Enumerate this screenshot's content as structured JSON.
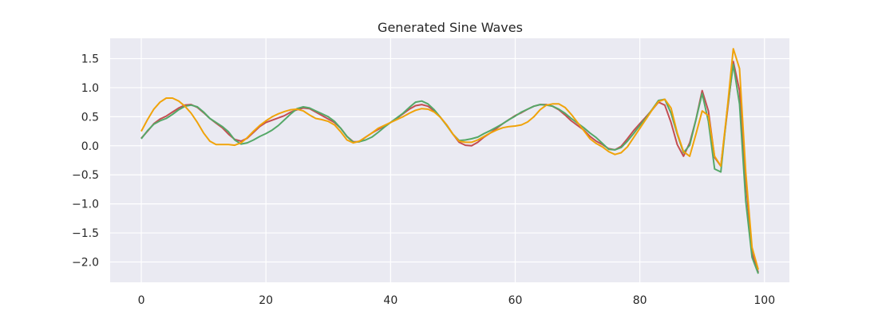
{
  "chart_data": {
    "type": "line",
    "title": "Generated Sine Waves",
    "xlabel": "",
    "ylabel": "",
    "xlim": [
      -5,
      104
    ],
    "ylim": [
      -2.35,
      1.85
    ],
    "grid": true,
    "background": "#eaeaf2",
    "grid_color": "#ffffff",
    "xticks": [
      0,
      20,
      40,
      60,
      80,
      100
    ],
    "yticks": [
      1.5,
      1.0,
      0.5,
      0.0,
      -0.5,
      -1.0,
      -1.5,
      -2.0
    ],
    "ytick_labels": [
      "1.5",
      "1.0",
      "0.5",
      "0.0",
      "−0.5",
      "−1.0",
      "−1.5",
      "−2.0"
    ],
    "series": [
      {
        "color": "#c44e52",
        "values": [
          0.13,
          0.25,
          0.38,
          0.46,
          0.51,
          0.58,
          0.65,
          0.7,
          0.71,
          0.66,
          0.57,
          0.47,
          0.39,
          0.31,
          0.2,
          0.11,
          0.08,
          0.13,
          0.23,
          0.33,
          0.4,
          0.44,
          0.48,
          0.52,
          0.58,
          0.62,
          0.65,
          0.64,
          0.58,
          0.52,
          0.46,
          0.4,
          0.3,
          0.16,
          0.07,
          0.07,
          0.15,
          0.22,
          0.28,
          0.34,
          0.4,
          0.47,
          0.55,
          0.63,
          0.69,
          0.71,
          0.68,
          0.6,
          0.49,
          0.36,
          0.2,
          0.06,
          0.01,
          0.0,
          0.06,
          0.15,
          0.22,
          0.3,
          0.38,
          0.45,
          0.52,
          0.57,
          0.63,
          0.68,
          0.71,
          0.71,
          0.68,
          0.62,
          0.53,
          0.43,
          0.35,
          0.27,
          0.16,
          0.08,
          0.02,
          -0.05,
          -0.07,
          -0.01,
          0.12,
          0.26,
          0.38,
          0.5,
          0.62,
          0.75,
          0.7,
          0.4,
          0.02,
          -0.18,
          0.05,
          0.45,
          0.95,
          0.6,
          -0.2,
          -0.35,
          0.55,
          1.45,
          0.95,
          -0.6,
          -1.85,
          -2.18
        ]
      },
      {
        "color": "#55a868",
        "values": [
          0.12,
          0.26,
          0.37,
          0.43,
          0.47,
          0.54,
          0.62,
          0.68,
          0.7,
          0.67,
          0.58,
          0.47,
          0.4,
          0.33,
          0.24,
          0.1,
          0.03,
          0.05,
          0.1,
          0.16,
          0.21,
          0.27,
          0.35,
          0.45,
          0.55,
          0.64,
          0.67,
          0.65,
          0.6,
          0.55,
          0.5,
          0.42,
          0.3,
          0.16,
          0.06,
          0.07,
          0.1,
          0.15,
          0.23,
          0.32,
          0.4,
          0.48,
          0.56,
          0.66,
          0.75,
          0.77,
          0.72,
          0.62,
          0.49,
          0.35,
          0.2,
          0.09,
          0.1,
          0.12,
          0.15,
          0.21,
          0.26,
          0.32,
          0.38,
          0.45,
          0.51,
          0.58,
          0.63,
          0.68,
          0.71,
          0.7,
          0.68,
          0.63,
          0.56,
          0.47,
          0.39,
          0.31,
          0.22,
          0.14,
          0.04,
          -0.06,
          -0.07,
          -0.03,
          0.08,
          0.21,
          0.35,
          0.48,
          0.63,
          0.78,
          0.8,
          0.56,
          0.2,
          -0.12,
          0.01,
          0.45,
          0.9,
          0.42,
          -0.4,
          -0.45,
          0.6,
          1.4,
          0.72,
          -0.95,
          -1.92,
          -2.2
        ]
      },
      {
        "color": "#f0a30a",
        "values": [
          0.25,
          0.45,
          0.63,
          0.75,
          0.82,
          0.82,
          0.77,
          0.68,
          0.56,
          0.4,
          0.22,
          0.08,
          0.02,
          0.02,
          0.02,
          0.01,
          0.05,
          0.14,
          0.25,
          0.35,
          0.43,
          0.5,
          0.55,
          0.59,
          0.62,
          0.63,
          0.6,
          0.53,
          0.47,
          0.45,
          0.42,
          0.36,
          0.24,
          0.1,
          0.05,
          0.08,
          0.15,
          0.22,
          0.3,
          0.35,
          0.4,
          0.45,
          0.5,
          0.56,
          0.61,
          0.64,
          0.63,
          0.58,
          0.49,
          0.36,
          0.2,
          0.08,
          0.06,
          0.06,
          0.1,
          0.16,
          0.22,
          0.27,
          0.31,
          0.33,
          0.34,
          0.36,
          0.41,
          0.5,
          0.62,
          0.7,
          0.72,
          0.72,
          0.66,
          0.54,
          0.4,
          0.26,
          0.12,
          0.04,
          -0.02,
          -0.1,
          -0.15,
          -0.12,
          -0.02,
          0.14,
          0.3,
          0.46,
          0.62,
          0.76,
          0.8,
          0.65,
          0.22,
          -0.1,
          -0.18,
          0.2,
          0.6,
          0.52,
          -0.18,
          -0.35,
          0.6,
          1.67,
          1.33,
          -0.45,
          -1.75,
          -2.13
        ]
      }
    ]
  }
}
